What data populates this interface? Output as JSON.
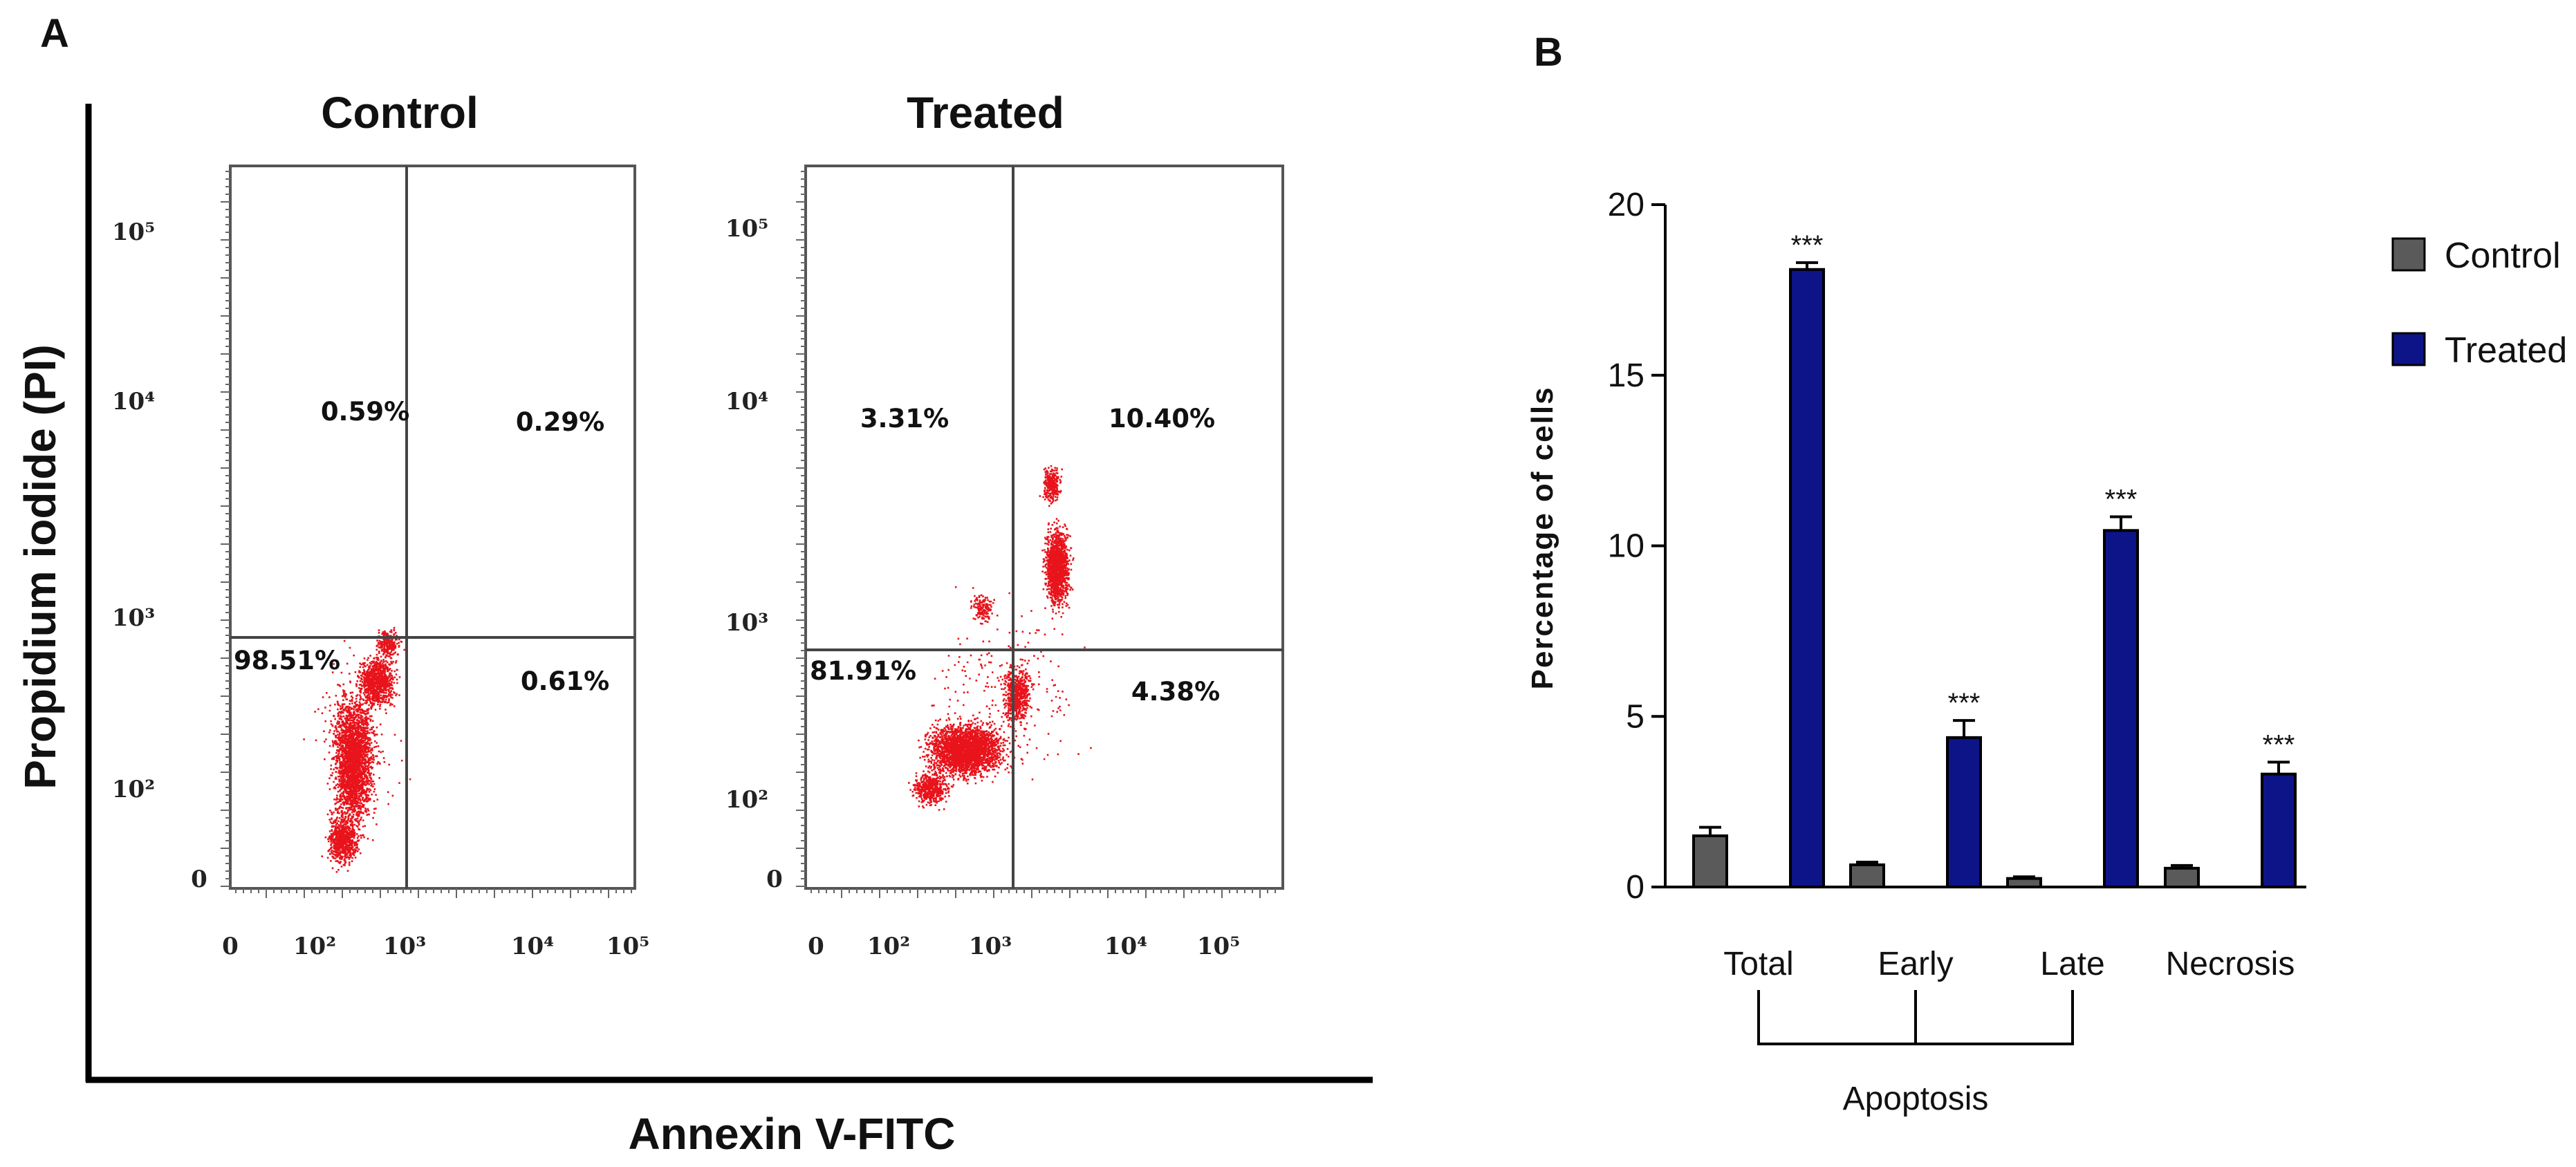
{
  "panel_a": {
    "letter": "A",
    "y_axis_label": "Propidium iodide (PI)",
    "x_axis_label": "Annexin V-FITC"
  },
  "panel_b": {
    "letter": "B"
  },
  "colors": {
    "dots": "#e8131b",
    "control_bar": "#5a5a5a",
    "treated_bar": "#0d1488"
  },
  "chart_data": [
    {
      "type": "scatter",
      "title": "Control",
      "x_ticks": [
        "0",
        "10²",
        "10³",
        "10⁴",
        "10⁵"
      ],
      "y_ticks": [
        "10⁵",
        "10⁴",
        "10³",
        "10²",
        "0"
      ],
      "quadrants": {
        "upper_left": "0.59%",
        "upper_right": "0.29%",
        "lower_left": "98.51%",
        "lower_right": "0.61%"
      }
    },
    {
      "type": "scatter",
      "title": "Treated",
      "x_ticks": [
        "0",
        "10²",
        "10³",
        "10⁴",
        "10⁵"
      ],
      "y_ticks": [
        "10⁵",
        "10⁴",
        "10³",
        "10²",
        "0"
      ],
      "quadrants": {
        "upper_left": "3.31%",
        "upper_right": "10.40%",
        "lower_left": "81.91%",
        "lower_right": "4.38%"
      }
    },
    {
      "type": "bar",
      "title": "",
      "ylabel": "Percentage of cells",
      "xlabel": "",
      "group_label": "Apoptosis",
      "categories": [
        "Total",
        "Early",
        "Late",
        "Necrosis"
      ],
      "ylim": [
        0,
        20
      ],
      "yticks": [
        "0",
        "5",
        "10",
        "15",
        "20"
      ],
      "series": [
        {
          "name": "Control",
          "values": [
            1.5,
            0.65,
            0.25,
            0.55
          ],
          "errors": [
            0.25,
            0.08,
            0.05,
            0.08
          ]
        },
        {
          "name": "Treated",
          "values": [
            18.1,
            4.38,
            10.45,
            3.31
          ],
          "errors": [
            0.2,
            0.5,
            0.4,
            0.35
          ]
        }
      ],
      "significance": [
        "***",
        "***",
        "***",
        "***"
      ],
      "legend": "right"
    }
  ]
}
